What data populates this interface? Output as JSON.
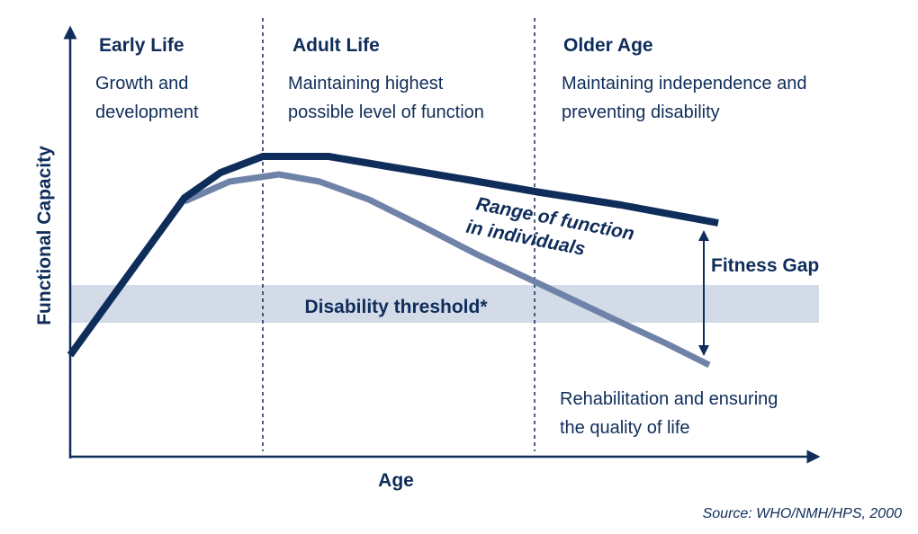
{
  "colors": {
    "dark_navy": "#0f2d5a",
    "steel_blue": "#6f82a8",
    "threshold_band": "#d3dbe8"
  },
  "axes": {
    "x_label": "Age",
    "y_label": "Functional Capacity"
  },
  "stages": [
    {
      "title": "Early Life",
      "lines": [
        "Growth and",
        "development"
      ]
    },
    {
      "title": "Adult Life",
      "lines": [
        "Maintaining highest",
        "possible level of function"
      ]
    },
    {
      "title": "Older Age",
      "lines": [
        "Maintaining independence and",
        "preventing disability"
      ]
    }
  ],
  "threshold_label": "Disability threshold*",
  "range_label": [
    "Range of function",
    "in individuals"
  ],
  "fitness_gap_label": "Fitness Gap",
  "rehab_label": [
    "Rehabilitation and ensuring",
    "the quality of life"
  ],
  "source": "Source: WHO/NMH/HPS, 2000"
}
